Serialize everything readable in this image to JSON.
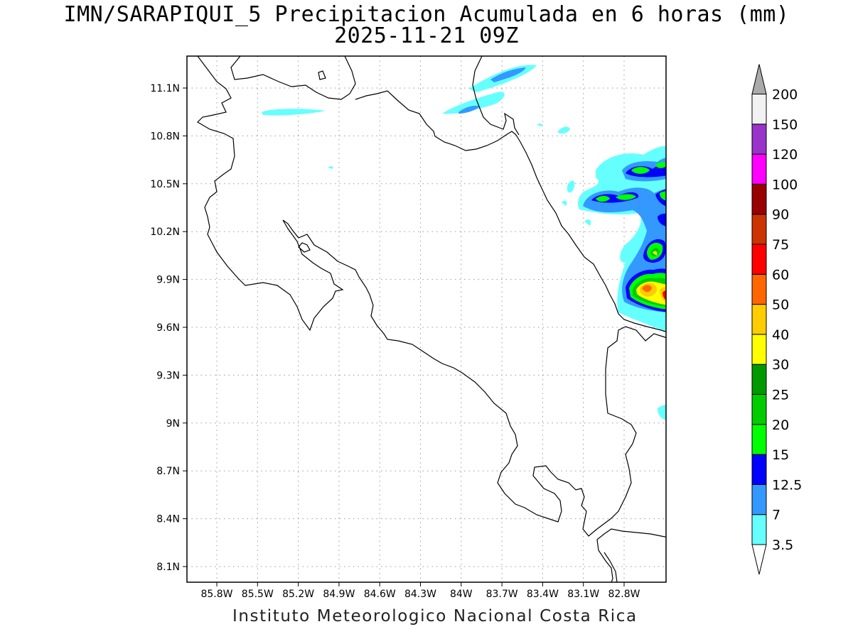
{
  "header": {
    "title": "IMN/SARAPIQUI_5 Precipitacion Acumulada en 6 horas (mm)",
    "datetime": "2025-11-21 09Z"
  },
  "footer": {
    "credit": "Instituto Meteorologico Nacional Costa Rica"
  },
  "map": {
    "x_ticks": [
      "85.8W",
      "85.5W",
      "85.2W",
      "84.9W",
      "84.6W",
      "84.3W",
      "84W",
      "83.7W",
      "83.4W",
      "83.1W",
      "82.8W"
    ],
    "y_ticks": [
      "11.1N",
      "10.8N",
      "10.5N",
      "10.2N",
      "9.9N",
      "9.6N",
      "9.3N",
      "9N",
      "8.7N",
      "8.4N",
      "8.1N"
    ],
    "grid": "dotted",
    "land_color": "#ffffff",
    "coast_color": "#000000"
  },
  "colorbar": {
    "levels": [
      "3.5",
      "7",
      "12.5",
      "15",
      "20",
      "25",
      "30",
      "40",
      "50",
      "60",
      "75",
      "90",
      "100",
      "120",
      "150",
      "200"
    ],
    "colors": [
      "#66ffff",
      "#3399ff",
      "#0000ff",
      "#00ff00",
      "#00cc00",
      "#009900",
      "#ffff00",
      "#ffcc00",
      "#ff6600",
      "#ff0000",
      "#cc3300",
      "#990000",
      "#ff00ff",
      "#9933cc",
      "#f2f2f2",
      "#aaaaaa"
    ]
  }
}
